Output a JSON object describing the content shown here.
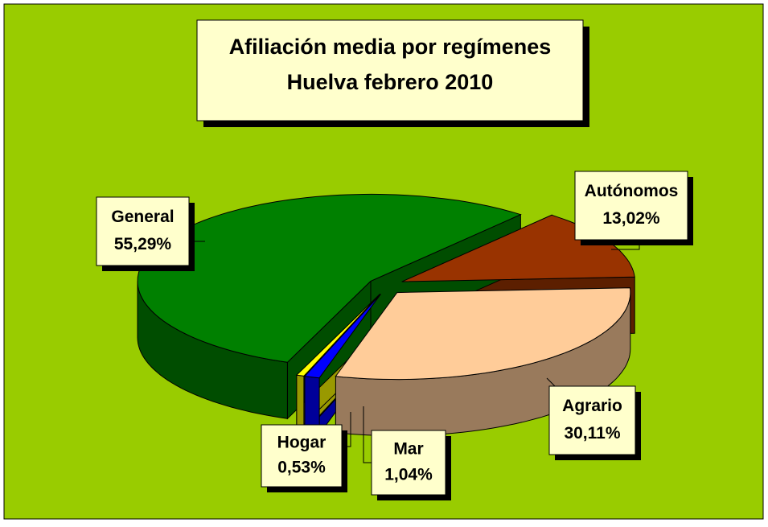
{
  "chart_data": {
    "type": "pie3d",
    "title": "Afiliación media por regímenes",
    "subtitle": "Huelva  febrero  2010",
    "categories": [
      "Autónomos",
      "Agrario",
      "Mar",
      "Hogar",
      "General"
    ],
    "values": [
      13.02,
      30.11,
      1.04,
      0.53,
      55.29
    ],
    "value_labels": [
      "13,02%",
      "30,11%",
      "1,04%",
      "0,53%",
      "55,29%"
    ],
    "colors": [
      "#993300",
      "#ffcc99",
      "#0000ff",
      "#ffff00",
      "#008000"
    ],
    "background": "#99cc00"
  }
}
